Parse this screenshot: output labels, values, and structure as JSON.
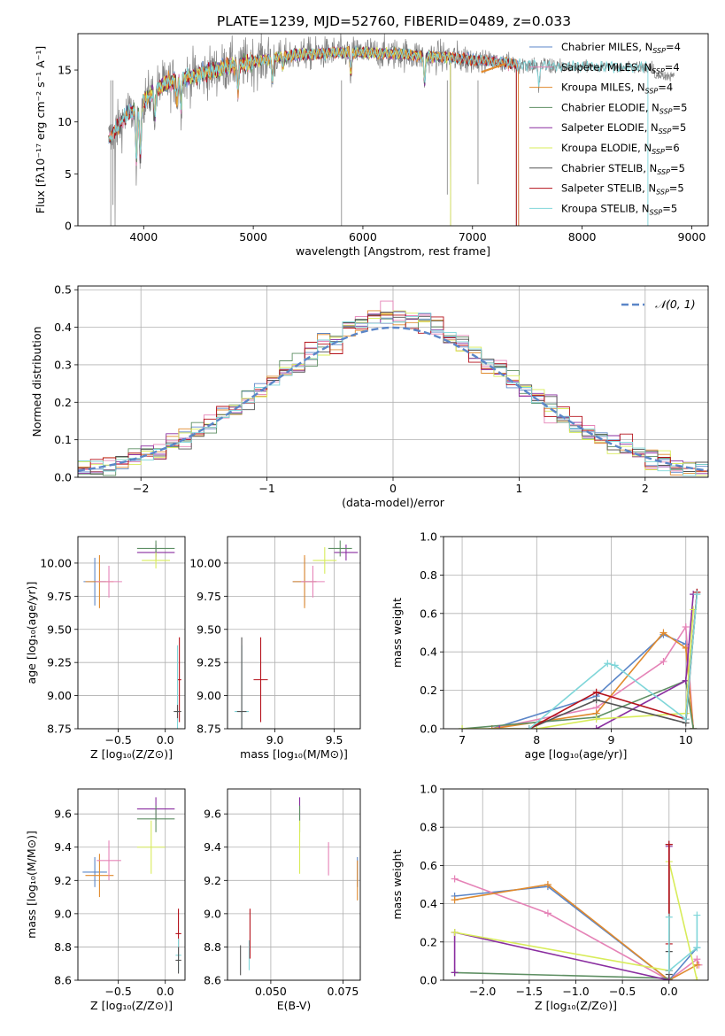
{
  "title": "PLATE=1239, MJD=52760, FIBERID=0489, z=0.033",
  "colors": {
    "Chabrier MILES": "#5b86c8",
    "Salpeter MILES": "#e583b7",
    "Kroupa MILES": "#e08a2e",
    "Chabrier ELODIE": "#5e8f63",
    "Salpeter ELODIE": "#8a2ea0",
    "Kroupa ELODIE": "#d8ec5a",
    "Chabrier STELIB": "#555555",
    "Salpeter STELIB": "#b5121b",
    "Kroupa STELIB": "#7fd6d9"
  },
  "legend_ssp": [
    {
      "name": "Chabrier MILES",
      "sub": "SSP",
      "n": "=4"
    },
    {
      "name": "Salpeter MILES",
      "sub": "SSP",
      "n": "=4"
    },
    {
      "name": "Kroupa MILES",
      "sub": "SSP",
      "n": "=4"
    },
    {
      "name": "Chabrier ELODIE",
      "sub": "SSP",
      "n": "=5"
    },
    {
      "name": "Salpeter ELODIE",
      "sub": "SSP",
      "n": "=5"
    },
    {
      "name": "Kroupa ELODIE",
      "sub": "SSP",
      "n": "=6"
    },
    {
      "name": "Chabrier STELIB",
      "sub": "SSP",
      "n": "=5"
    },
    {
      "name": "Salpeter STELIB",
      "sub": "SSP",
      "n": "=5"
    },
    {
      "name": "Kroupa STELIB",
      "sub": "SSP",
      "n": "=5"
    }
  ],
  "chart_data": [
    {
      "id": "spectrum",
      "type": "line",
      "xlabel": "wavelength [Angstrom, rest frame]",
      "ylabel": "Flux [fλ10⁻¹⁷ erg cm⁻² s⁻¹ A⁻¹]",
      "xlim": [
        3400,
        9150
      ],
      "ylim": [
        0,
        18.5
      ],
      "xticks": [
        4000,
        5000,
        6000,
        7000,
        8000,
        9000
      ],
      "yticks": [
        0,
        5,
        10,
        15
      ],
      "grid": false,
      "legend": "top-right",
      "continuum": [
        [
          3680,
          8.3
        ],
        [
          3750,
          9.3
        ],
        [
          3850,
          10.8
        ],
        [
          3950,
          11.3
        ],
        [
          4000,
          12.0
        ],
        [
          4100,
          13.0
        ],
        [
          4200,
          13.7
        ],
        [
          4400,
          14.3
        ],
        [
          4600,
          14.8
        ],
        [
          4800,
          15.4
        ],
        [
          5000,
          15.8
        ],
        [
          5200,
          16.2
        ],
        [
          5400,
          16.5
        ],
        [
          5600,
          16.6
        ],
        [
          5800,
          16.7
        ],
        [
          6000,
          16.7
        ],
        [
          6200,
          16.6
        ],
        [
          6400,
          16.5
        ],
        [
          6600,
          16.3
        ],
        [
          6800,
          16.2
        ],
        [
          7000,
          16.0
        ],
        [
          7200,
          15.8
        ],
        [
          7400,
          15.6
        ],
        [
          7600,
          15.5
        ],
        [
          7800,
          15.3
        ]
      ],
      "model_end": {
        "Chabrier MILES": 7420,
        "Salpeter MILES": 7420,
        "Kroupa MILES": 7420,
        "Chabrier ELODIE": 6800,
        "Salpeter ELODIE": 6800,
        "Kroupa ELODIE": 6800,
        "Chabrier STELIB": 7400,
        "Salpeter STELIB": 7400,
        "Kroupa STELIB": 8600
      },
      "data_range": [
        3680,
        8840
      ]
    },
    {
      "id": "residuals",
      "type": "histogram",
      "xlabel": "(data-model)/error",
      "ylabel": "Normed distribution",
      "xlim": [
        -2.5,
        2.5
      ],
      "ylim": [
        0,
        0.51
      ],
      "xticks": [
        -2,
        -1,
        0,
        1,
        2
      ],
      "yticks": [
        0.0,
        0.1,
        0.2,
        0.3,
        0.4,
        0.5
      ],
      "grid": true,
      "legend": "top-right",
      "gaussian_label": "𝒩(0, 1)",
      "gaussian": {
        "mu": 0,
        "sigma": 1
      }
    },
    {
      "id": "age_vs_Z",
      "type": "errorbar",
      "xlabel": "Z [log₁₀(Z/Z⊙)]",
      "ylabel": "age  [log₁₀(age/yr)]",
      "xlim": [
        -0.93,
        0.21
      ],
      "ylim": [
        8.75,
        10.2
      ],
      "xticks": [
        -0.5,
        0.0
      ],
      "yticks": [
        8.75,
        9.0,
        9.25,
        9.5,
        9.75,
        10.0
      ],
      "grid": true,
      "points": [
        {
          "model": "Chabrier MILES",
          "x": -0.75,
          "xerr": 0.12,
          "y": 9.86,
          "yerr": 0.18
        },
        {
          "model": "Kroupa MILES",
          "x": -0.7,
          "xerr": 0.15,
          "y": 9.86,
          "yerr": 0.2
        },
        {
          "model": "Salpeter MILES",
          "x": -0.6,
          "xerr": 0.14,
          "y": 9.86,
          "yerr": 0.12
        },
        {
          "model": "Salpeter ELODIE",
          "x": -0.1,
          "xerr": 0.2,
          "y": 10.08,
          "yerr": 0.06
        },
        {
          "model": "Chabrier ELODIE",
          "x": -0.1,
          "xerr": 0.2,
          "y": 10.11,
          "yerr": 0.06
        },
        {
          "model": "Kroupa ELODIE",
          "x": -0.1,
          "xerr": 0.15,
          "y": 10.02,
          "yerr": 0.06
        },
        {
          "model": "Salpeter STELIB",
          "x": 0.15,
          "xerr": 0.02,
          "y": 9.12,
          "yerr": 0.32
        },
        {
          "model": "Kroupa STELIB",
          "x": 0.13,
          "xerr": 0.02,
          "y": 8.88,
          "yerr": 0.5
        },
        {
          "model": "Chabrier STELIB",
          "x": 0.13,
          "xerr": 0.04,
          "y": 8.88,
          "yerr": 0.05
        }
      ]
    },
    {
      "id": "age_vs_mass",
      "type": "errorbar",
      "xlabel": "mass [log₁₀(M/M⊙)]",
      "ylabel": "",
      "xlim": [
        8.6,
        9.72
      ],
      "ylim": [
        8.75,
        10.2
      ],
      "xticks": [
        9.0,
        9.5
      ],
      "yticks": [
        8.75,
        9.0,
        9.25,
        9.5,
        9.75,
        10.0
      ],
      "grid": true,
      "points": [
        {
          "model": "Chabrier MILES",
          "x": 9.25,
          "xerr": 0.1,
          "y": 9.86,
          "yerr": 0.18
        },
        {
          "model": "Kroupa MILES",
          "x": 9.25,
          "xerr": 0.1,
          "y": 9.86,
          "yerr": 0.2
        },
        {
          "model": "Salpeter MILES",
          "x": 9.32,
          "xerr": 0.1,
          "y": 9.86,
          "yerr": 0.12
        },
        {
          "model": "Salpeter ELODIE",
          "x": 9.6,
          "xerr": 0.1,
          "y": 10.08,
          "yerr": 0.06
        },
        {
          "model": "Chabrier ELODIE",
          "x": 9.55,
          "xerr": 0.1,
          "y": 10.11,
          "yerr": 0.06
        },
        {
          "model": "Kroupa ELODIE",
          "x": 9.42,
          "xerr": 0.1,
          "y": 10.02,
          "yerr": 0.1
        },
        {
          "model": "Salpeter STELIB",
          "x": 8.88,
          "xerr": 0.06,
          "y": 9.12,
          "yerr": 0.32
        },
        {
          "model": "Kroupa STELIB",
          "x": 8.72,
          "xerr": 0.06,
          "y": 8.88,
          "yerr": 0.5
        },
        {
          "model": "Chabrier STELIB",
          "x": 8.72,
          "xerr": 0.04,
          "y": 8.88,
          "yerr": 0.56
        }
      ]
    },
    {
      "id": "weight_vs_age",
      "type": "line",
      "xlabel": "age  [log₁₀(age/yr)]",
      "ylabel": "mass weight",
      "xlim": [
        6.75,
        10.3
      ],
      "ylim": [
        0,
        1.0
      ],
      "xticks": [
        7,
        8,
        9,
        10
      ],
      "yticks": [
        0.0,
        0.2,
        0.4,
        0.6,
        0.8,
        1.0
      ],
      "grid": true,
      "series": [
        {
          "model": "Chabrier MILES",
          "x": [
            7.4,
            8.8,
            9.7,
            10.0,
            10.1
          ],
          "y": [
            0.0,
            0.17,
            0.49,
            0.44,
            0.0
          ]
        },
        {
          "model": "Salpeter MILES",
          "x": [
            7.4,
            8.8,
            9.7,
            10.0,
            10.1
          ],
          "y": [
            0.0,
            0.11,
            0.35,
            0.53,
            0.0
          ]
        },
        {
          "model": "Kroupa MILES",
          "x": [
            7.4,
            8.8,
            9.7,
            10.0,
            10.1
          ],
          "y": [
            0.0,
            0.08,
            0.5,
            0.42,
            0.0
          ]
        },
        {
          "model": "Chabrier ELODIE",
          "x": [
            7.0,
            8.8,
            10.0,
            10.1
          ],
          "y": [
            0.0,
            0.06,
            0.25,
            0.0
          ]
        },
        {
          "model": "Salpeter ELODIE",
          "x": [
            7.5,
            8.8,
            10.0,
            10.1
          ],
          "y": [
            0.0,
            0.0,
            0.25,
            0.7
          ]
        },
        {
          "model": "Kroupa ELODIE",
          "x": [
            7.0,
            8.0,
            8.8,
            10.0,
            10.1
          ],
          "y": [
            0.0,
            0.0,
            0.05,
            0.08,
            0.62
          ]
        },
        {
          "model": "Chabrier STELIB",
          "x": [
            7.9,
            8.8,
            10.0,
            10.15
          ],
          "y": [
            0.0,
            0.15,
            0.03,
            0.71
          ]
        },
        {
          "model": "Salpeter STELIB",
          "x": [
            7.9,
            8.8,
            10.0,
            10.15
          ],
          "y": [
            0.0,
            0.19,
            0.05,
            0.71
          ]
        },
        {
          "model": "Kroupa STELIB",
          "x": [
            7.9,
            8.95,
            9.05,
            10.0,
            10.15
          ],
          "y": [
            0.0,
            0.34,
            0.33,
            0.05,
            0.7
          ]
        }
      ]
    },
    {
      "id": "mass_vs_Z",
      "type": "errorbar",
      "xlabel": "Z [log₁₀(Z/Z⊙)]",
      "ylabel": "mass [log₁₀(M/M⊙)]",
      "xlim": [
        -0.93,
        0.21
      ],
      "ylim": [
        8.6,
        9.75
      ],
      "xticks": [
        -0.5,
        0.0
      ],
      "yticks": [
        8.6,
        8.8,
        9.0,
        9.2,
        9.4,
        9.6
      ],
      "grid": true,
      "points": [
        {
          "model": "Chabrier MILES",
          "x": -0.75,
          "xerr": 0.13,
          "y": 9.25,
          "yerr": 0.09
        },
        {
          "model": "Kroupa MILES",
          "x": -0.7,
          "xerr": 0.15,
          "y": 9.23,
          "yerr": 0.13
        },
        {
          "model": "Salpeter MILES",
          "x": -0.6,
          "xerr": 0.13,
          "y": 9.32,
          "yerr": 0.12
        },
        {
          "model": "Salpeter ELODIE",
          "x": -0.1,
          "xerr": 0.2,
          "y": 9.63,
          "yerr": 0.07
        },
        {
          "model": "Chabrier ELODIE",
          "x": -0.1,
          "xerr": 0.2,
          "y": 9.57,
          "yerr": 0.08
        },
        {
          "model": "Kroupa ELODIE",
          "x": -0.15,
          "xerr": 0.15,
          "y": 9.4,
          "yerr": 0.16
        },
        {
          "model": "Salpeter STELIB",
          "x": 0.14,
          "xerr": 0.03,
          "y": 8.88,
          "yerr": 0.15
        },
        {
          "model": "Kroupa STELIB",
          "x": 0.14,
          "xerr": 0.03,
          "y": 8.75,
          "yerr": 0.1
        },
        {
          "model": "Chabrier STELIB",
          "x": 0.14,
          "xerr": 0.03,
          "y": 8.72,
          "yerr": 0.08
        }
      ]
    },
    {
      "id": "mass_vs_EBV",
      "type": "errorbar",
      "xlabel": "E(B-V)",
      "ylabel": "",
      "xlim": [
        0.035,
        0.081
      ],
      "ylim": [
        8.6,
        9.75
      ],
      "xticks": [
        0.05,
        0.075
      ],
      "xtick_labels": [
        "0.050",
        "0.075"
      ],
      "yticks": [
        8.6,
        8.8,
        9.0,
        9.2,
        9.4,
        9.6
      ],
      "grid": true,
      "points": [
        {
          "model": "Chabrier STELIB",
          "x": 0.0395,
          "xerr": 0,
          "y": 8.72,
          "yerr": 0.09
        },
        {
          "model": "Kroupa STELIB",
          "x": 0.0425,
          "xerr": 0,
          "y": 8.75,
          "yerr": 0.09
        },
        {
          "model": "Salpeter STELIB",
          "x": 0.0428,
          "xerr": 0,
          "y": 8.88,
          "yerr": 0.15
        },
        {
          "model": "Salpeter ELODIE",
          "x": 0.06,
          "xerr": 0,
          "y": 9.63,
          "yerr": 0.07
        },
        {
          "model": "Chabrier ELODIE",
          "x": 0.06,
          "xerr": 0,
          "y": 9.57,
          "yerr": 0.08
        },
        {
          "model": "Kroupa ELODIE",
          "x": 0.06,
          "xerr": 0,
          "y": 9.4,
          "yerr": 0.16
        },
        {
          "model": "Salpeter MILES",
          "x": 0.07,
          "xerr": 0,
          "y": 9.33,
          "yerr": 0.1
        },
        {
          "model": "Chabrier MILES",
          "x": 0.08,
          "xerr": 0,
          "y": 9.25,
          "yerr": 0.09
        },
        {
          "model": "Kroupa MILES",
          "x": 0.08,
          "xerr": 0,
          "y": 9.2,
          "yerr": 0.12
        }
      ]
    },
    {
      "id": "weight_vs_Z",
      "type": "line",
      "xlabel": "Z [log₁₀(Z/Z⊙)]",
      "ylabel": "mass weight",
      "xlim": [
        -2.42,
        0.42
      ],
      "ylim": [
        0,
        1.0
      ],
      "xticks": [
        -2.0,
        -1.5,
        -1.0,
        -0.5,
        0.0
      ],
      "yticks": [
        0.0,
        0.2,
        0.4,
        0.6,
        0.8,
        1.0
      ],
      "grid": true,
      "series": [
        {
          "model": "Chabrier MILES",
          "x": [
            -2.3,
            -1.3,
            0.0,
            0.3
          ],
          "y": [
            0.44,
            0.49,
            0.0,
            0.17
          ]
        },
        {
          "model": "Salpeter MILES",
          "x": [
            -2.3,
            -1.3,
            0.0,
            0.3,
            0.32
          ],
          "y": [
            0.53,
            0.35,
            0.0,
            0.11,
            0.08
          ]
        },
        {
          "model": "Kroupa MILES",
          "x": [
            -2.3,
            -1.3,
            0.0,
            0.3
          ],
          "y": [
            0.42,
            0.5,
            0.0,
            0.08
          ]
        },
        {
          "model": "Chabrier ELODIE",
          "x": [
            -2.3,
            0.0
          ],
          "y": [
            0.04,
            0.01
          ]
        },
        {
          "model": "Salpeter ELODIE",
          "x": [
            -2.3,
            -2.3,
            0.0,
            0.0
          ],
          "y": [
            0.04,
            0.25,
            0.0,
            0.7
          ]
        },
        {
          "model": "Kroupa ELODIE",
          "x": [
            -2.3,
            0.0,
            0.0,
            0.3
          ],
          "y": [
            0.25,
            0.05,
            0.62,
            0.0
          ]
        },
        {
          "model": "Chabrier STELIB",
          "x": [
            0.0,
            0.0,
            0.0
          ],
          "y": [
            0.15,
            0.03,
            0.71
          ]
        },
        {
          "model": "Salpeter STELIB",
          "x": [
            0.0,
            0.0,
            0.0
          ],
          "y": [
            0.19,
            0.05,
            0.71
          ]
        },
        {
          "model": "Kroupa STELIB",
          "x": [
            0.0,
            0.0,
            0.3,
            0.3
          ],
          "y": [
            0.33,
            0.05,
            0.17,
            0.34
          ]
        }
      ]
    }
  ]
}
